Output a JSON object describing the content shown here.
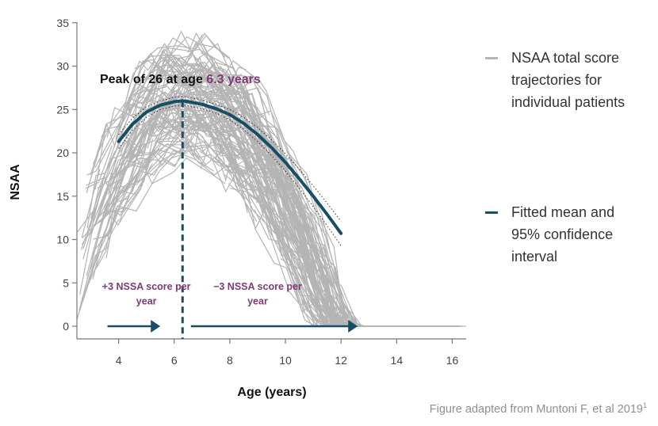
{
  "chart_data": {
    "type": "line",
    "xlabel": "Age (years)",
    "ylabel": "NSAA",
    "xlim": [
      2.5,
      16.5
    ],
    "ylim": [
      -1.5,
      35
    ],
    "x_ticks": [
      4,
      6,
      8,
      10,
      12,
      14,
      16
    ],
    "y_ticks": [
      0,
      5,
      10,
      15,
      20,
      25,
      30,
      35
    ],
    "series": [
      {
        "name": "NSAA total score trajectories for individual patients",
        "style": "individual-trajectories",
        "count_shown": "many (approx. 300)",
        "x_range": [
          2.5,
          16.5
        ],
        "y_range": [
          0,
          34
        ]
      },
      {
        "name": "Fitted mean and 95% confidence interval",
        "style": "fitted-mean",
        "x": [
          4.0,
          4.5,
          5.0,
          5.5,
          6.0,
          6.3,
          6.5,
          7.0,
          7.5,
          8.0,
          8.5,
          9.0,
          9.5,
          10.0,
          10.5,
          11.0,
          11.5,
          12.0
        ],
        "y": [
          21.3,
          23.3,
          24.7,
          25.5,
          25.9,
          26.0,
          25.9,
          25.6,
          25.1,
          24.4,
          23.4,
          22.1,
          20.6,
          18.9,
          17.0,
          15.0,
          12.9,
          10.7
        ],
        "ci_lower": [
          20.5,
          22.6,
          24.1,
          25.0,
          25.4,
          25.5,
          25.4,
          25.1,
          24.6,
          23.8,
          22.7,
          21.3,
          19.7,
          17.9,
          15.9,
          13.8,
          11.6,
          9.3
        ],
        "ci_upper": [
          22.1,
          24.0,
          25.3,
          26.0,
          26.4,
          26.5,
          26.4,
          26.1,
          25.6,
          25.0,
          24.1,
          22.9,
          21.5,
          19.9,
          18.1,
          16.2,
          14.2,
          12.1
        ]
      }
    ],
    "peak": {
      "x": 6.3,
      "y": 26
    },
    "annotations": {
      "peak_label_prefix": "Peak of 26 at age ",
      "peak_label_value": "6.3 years",
      "left_arrow_text_line1": "+3 NSSA score per",
      "left_arrow_text_line2": "year",
      "right_arrow_text_line1": "−3 NSSA score per",
      "right_arrow_text_line2": "year",
      "left_arrow_x": [
        3.6,
        5.5
      ],
      "right_arrow_x": [
        6.6,
        12.6
      ],
      "arrow_y": 0,
      "left_text_x": 5.0,
      "right_text_x": 9.0,
      "text_line1_y": 4.2,
      "text_line2_y": 2.5
    },
    "legend": [
      {
        "label_line1": "NSAA total score",
        "label_line2": "trajectories for",
        "label_line3": "individual patients",
        "color": "#b4b4b4"
      },
      {
        "label_line1": "Fitted mean and",
        "label_line2": "95% confidence",
        "label_line3": "interval",
        "color": "#184d66"
      }
    ],
    "legend_position": "right"
  },
  "colors": {
    "trajectory": "#b4b4b4",
    "fitted": "#184d66",
    "peak_value": "#7d3a74",
    "arrow_text": "#7d3a74",
    "axis": "#777777",
    "tick_label": "#444444"
  },
  "caption": {
    "text": "Figure adapted from Muntoni F, et al 2019",
    "superscript": "1"
  }
}
